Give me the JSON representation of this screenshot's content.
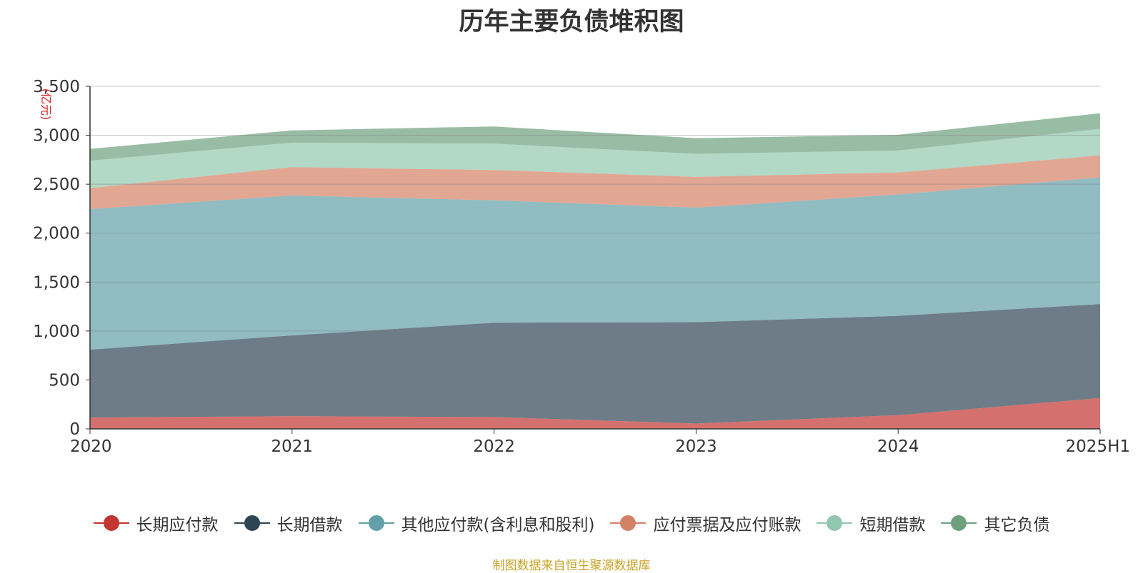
{
  "chart_data": {
    "type": "area",
    "stacked": true,
    "title": "历年主要负债堆积图",
    "unit_label": "(亿元)",
    "categories": [
      "2020",
      "2021",
      "2022",
      "2023",
      "2024",
      "2025H1"
    ],
    "ylim": [
      0,
      3500
    ],
    "yticks": [
      "0",
      "500",
      "1,000",
      "1,500",
      "2,000",
      "2,500",
      "3,000",
      "3,500"
    ],
    "grid": true,
    "legend_position": "bottom",
    "series": [
      {
        "name": "长期应付款",
        "color": "#c23531",
        "values": [
          115,
          130,
          120,
          55,
          140,
          315
        ]
      },
      {
        "name": "长期借款",
        "color": "#2f4554",
        "values": [
          695,
          825,
          965,
          1035,
          1015,
          960
        ]
      },
      {
        "name": "其他应付款(含利息和股利)",
        "color": "#61a0a8",
        "values": [
          1435,
          1430,
          1250,
          1170,
          1240,
          1295
        ]
      },
      {
        "name": "应付票据及应付账款",
        "color": "#d48265",
        "values": [
          215,
          290,
          310,
          315,
          225,
          225
        ]
      },
      {
        "name": "短期借款",
        "color": "#91c7ae",
        "values": [
          280,
          250,
          270,
          235,
          225,
          270
        ]
      },
      {
        "name": "其它负债",
        "color": "#6e9f7e",
        "values": [
          120,
          125,
          175,
          160,
          160,
          160
        ]
      }
    ]
  },
  "source_note": "制图数据来自恒生聚源数据库"
}
